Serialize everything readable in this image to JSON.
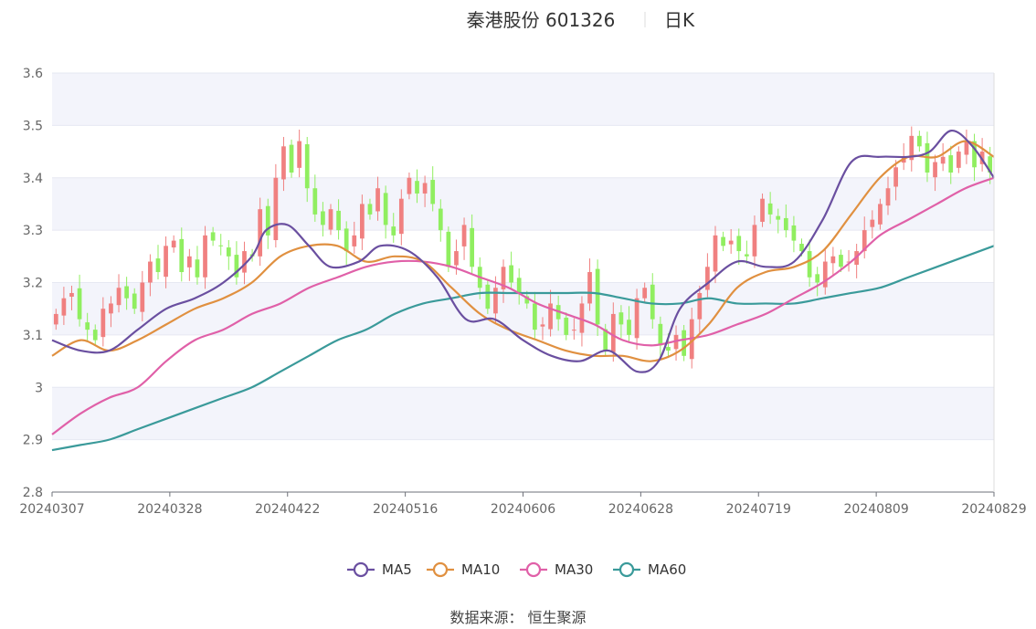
{
  "header": {
    "title": "秦港股份 601326",
    "period": "日K"
  },
  "source": "数据来源： 恒生聚源",
  "colors": {
    "up": "#f08080",
    "down": "#90ee60",
    "ma5": "#6a4fa0",
    "ma10": "#e09040",
    "ma30": "#e060a8",
    "ma60": "#3a9a9a",
    "grid": "#e6e8f2",
    "band": "#f3f4fb"
  },
  "chart_data": {
    "type": "candlestick",
    "title": "秦港股份 601326",
    "subtitle": "日K",
    "ylim": [
      2.8,
      3.6
    ],
    "yticks": [
      "2.8",
      "2.9",
      "3",
      "3.1",
      "3.2",
      "3.3",
      "3.4",
      "3.5",
      "3.6"
    ],
    "x_ticks": [
      "20240307",
      "20240328",
      "20240422",
      "20240516",
      "20240606",
      "20240628",
      "20240719",
      "20240809",
      "20240829"
    ],
    "num_days": 120,
    "legend": [
      "MA5",
      "MA10",
      "MA30",
      "MA60"
    ],
    "closes": [
      3.14,
      3.17,
      3.18,
      3.13,
      3.11,
      3.09,
      3.15,
      3.16,
      3.19,
      3.17,
      3.15,
      3.2,
      3.24,
      3.22,
      3.27,
      3.28,
      3.22,
      3.25,
      3.21,
      3.29,
      3.28,
      3.27,
      3.25,
      3.21,
      3.26,
      3.25,
      3.34,
      3.29,
      3.4,
      3.46,
      3.41,
      3.47,
      3.38,
      3.33,
      3.31,
      3.34,
      3.3,
      3.26,
      3.29,
      3.35,
      3.33,
      3.38,
      3.31,
      3.29,
      3.36,
      3.4,
      3.37,
      3.39,
      3.35,
      3.3,
      3.23,
      3.26,
      3.31,
      3.23,
      3.19,
      3.15,
      3.19,
      3.23,
      3.2,
      3.18,
      3.16,
      3.11,
      3.12,
      3.16,
      3.13,
      3.1,
      3.11,
      3.16,
      3.22,
      3.12,
      3.07,
      3.14,
      3.12,
      3.1,
      3.17,
      3.19,
      3.13,
      3.08,
      3.07,
      3.1,
      3.06,
      3.13,
      3.18,
      3.23,
      3.29,
      3.27,
      3.28,
      3.26,
      3.25,
      3.31,
      3.36,
      3.33,
      3.32,
      3.3,
      3.28,
      3.26,
      3.21,
      3.2,
      3.24,
      3.25,
      3.23,
      3.24,
      3.26,
      3.3,
      3.32,
      3.35,
      3.38,
      3.42,
      3.44,
      3.48,
      3.46,
      3.41,
      3.43,
      3.44,
      3.41,
      3.45,
      3.47,
      3.42,
      3.45,
      3.41
    ]
  },
  "ma_lines": {
    "ma5": [
      [
        0,
        3.09
      ],
      [
        4,
        3.07
      ],
      [
        8,
        3.07
      ],
      [
        12,
        3.11
      ],
      [
        16,
        3.15
      ],
      [
        20,
        3.17
      ],
      [
        24,
        3.2
      ],
      [
        28,
        3.25
      ],
      [
        30,
        3.3
      ],
      [
        33,
        3.31
      ],
      [
        36,
        3.27
      ],
      [
        39,
        3.23
      ],
      [
        43,
        3.24
      ],
      [
        46,
        3.27
      ],
      [
        50,
        3.26
      ],
      [
        54,
        3.21
      ],
      [
        58,
        3.13
      ],
      [
        62,
        3.13
      ],
      [
        66,
        3.09
      ],
      [
        70,
        3.06
      ],
      [
        74,
        3.05
      ],
      [
        78,
        3.07
      ],
      [
        82,
        3.03
      ],
      [
        85,
        3.05
      ],
      [
        88,
        3.15
      ],
      [
        92,
        3.2
      ],
      [
        96,
        3.24
      ],
      [
        100,
        3.23
      ],
      [
        104,
        3.24
      ],
      [
        108,
        3.32
      ],
      [
        112,
        3.43
      ],
      [
        116,
        3.44
      ],
      [
        120,
        3.44
      ],
      [
        123,
        3.45
      ],
      [
        126,
        3.49
      ],
      [
        129,
        3.46
      ],
      [
        132,
        3.4
      ]
    ],
    "ma10": [
      [
        0,
        3.06
      ],
      [
        4,
        3.09
      ],
      [
        8,
        3.07
      ],
      [
        12,
        3.09
      ],
      [
        16,
        3.12
      ],
      [
        20,
        3.15
      ],
      [
        24,
        3.17
      ],
      [
        28,
        3.2
      ],
      [
        32,
        3.25
      ],
      [
        36,
        3.27
      ],
      [
        40,
        3.27
      ],
      [
        44,
        3.24
      ],
      [
        48,
        3.25
      ],
      [
        52,
        3.24
      ],
      [
        56,
        3.19
      ],
      [
        60,
        3.14
      ],
      [
        64,
        3.11
      ],
      [
        68,
        3.09
      ],
      [
        72,
        3.07
      ],
      [
        76,
        3.06
      ],
      [
        80,
        3.06
      ],
      [
        84,
        3.05
      ],
      [
        88,
        3.07
      ],
      [
        92,
        3.12
      ],
      [
        96,
        3.19
      ],
      [
        100,
        3.22
      ],
      [
        104,
        3.23
      ],
      [
        108,
        3.26
      ],
      [
        112,
        3.33
      ],
      [
        116,
        3.4
      ],
      [
        120,
        3.44
      ],
      [
        124,
        3.44
      ],
      [
        128,
        3.47
      ],
      [
        132,
        3.44
      ]
    ],
    "ma30": [
      [
        0,
        2.91
      ],
      [
        4,
        2.95
      ],
      [
        8,
        2.98
      ],
      [
        12,
        3.0
      ],
      [
        16,
        3.05
      ],
      [
        20,
        3.09
      ],
      [
        24,
        3.11
      ],
      [
        28,
        3.14
      ],
      [
        32,
        3.16
      ],
      [
        36,
        3.19
      ],
      [
        40,
        3.21
      ],
      [
        44,
        3.23
      ],
      [
        48,
        3.24
      ],
      [
        52,
        3.24
      ],
      [
        56,
        3.23
      ],
      [
        60,
        3.21
      ],
      [
        64,
        3.19
      ],
      [
        68,
        3.16
      ],
      [
        72,
        3.14
      ],
      [
        76,
        3.12
      ],
      [
        80,
        3.09
      ],
      [
        84,
        3.08
      ],
      [
        88,
        3.09
      ],
      [
        92,
        3.1
      ],
      [
        96,
        3.12
      ],
      [
        100,
        3.14
      ],
      [
        104,
        3.17
      ],
      [
        108,
        3.2
      ],
      [
        112,
        3.24
      ],
      [
        116,
        3.29
      ],
      [
        120,
        3.32
      ],
      [
        124,
        3.35
      ],
      [
        128,
        3.38
      ],
      [
        132,
        3.4
      ]
    ],
    "ma60": [
      [
        0,
        2.88
      ],
      [
        4,
        2.89
      ],
      [
        8,
        2.9
      ],
      [
        12,
        2.92
      ],
      [
        16,
        2.94
      ],
      [
        20,
        2.96
      ],
      [
        24,
        2.98
      ],
      [
        28,
        3.0
      ],
      [
        32,
        3.03
      ],
      [
        36,
        3.06
      ],
      [
        40,
        3.09
      ],
      [
        44,
        3.11
      ],
      [
        48,
        3.14
      ],
      [
        52,
        3.16
      ],
      [
        56,
        3.17
      ],
      [
        60,
        3.18
      ],
      [
        64,
        3.18
      ],
      [
        68,
        3.18
      ],
      [
        72,
        3.18
      ],
      [
        76,
        3.18
      ],
      [
        80,
        3.17
      ],
      [
        84,
        3.16
      ],
      [
        88,
        3.16
      ],
      [
        92,
        3.17
      ],
      [
        96,
        3.16
      ],
      [
        100,
        3.16
      ],
      [
        104,
        3.16
      ],
      [
        108,
        3.17
      ],
      [
        112,
        3.18
      ],
      [
        116,
        3.19
      ],
      [
        120,
        3.21
      ],
      [
        124,
        3.23
      ],
      [
        128,
        3.25
      ],
      [
        132,
        3.27
      ]
    ]
  }
}
